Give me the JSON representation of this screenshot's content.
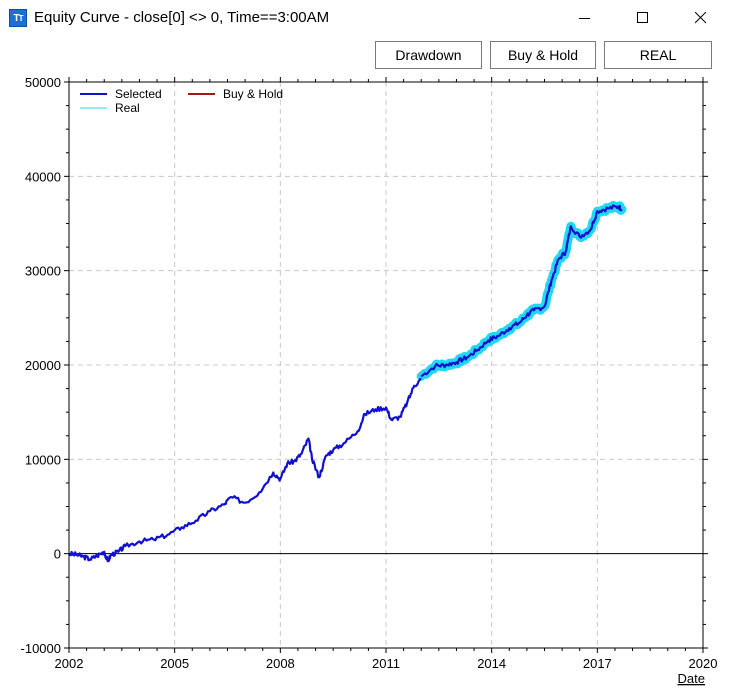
{
  "window": {
    "title": "Equity Curve - close[0] <> 0, Time==3:00AM",
    "icon": "tt-app-icon"
  },
  "toolbar": {
    "drawdown_label": "Drawdown",
    "buyhold_label": "Buy & Hold",
    "real_label": "REAL"
  },
  "chart_data": {
    "type": "line",
    "title": "",
    "xlabel": "Date",
    "ylabel": "",
    "xlim": [
      2002,
      2020
    ],
    "ylim": [
      -10000,
      50000
    ],
    "xticks": [
      2002,
      2005,
      2008,
      2011,
      2014,
      2017,
      2020
    ],
    "yticks": [
      -10000,
      0,
      10000,
      20000,
      30000,
      40000,
      50000
    ],
    "grid": true,
    "legend_position": "top-left",
    "series": [
      {
        "name": "Selected",
        "color": "#1010d0",
        "points": [
          [
            2002.0,
            0
          ],
          [
            2002.2,
            -100
          ],
          [
            2002.4,
            -300
          ],
          [
            2002.6,
            -600
          ],
          [
            2002.8,
            -200
          ],
          [
            2003.0,
            200
          ],
          [
            2003.1,
            -800
          ],
          [
            2003.2,
            -100
          ],
          [
            2003.4,
            200
          ],
          [
            2003.6,
            800
          ],
          [
            2004.0,
            1300
          ],
          [
            2004.4,
            1500
          ],
          [
            2004.8,
            2000
          ],
          [
            2005.2,
            2800
          ],
          [
            2005.6,
            3500
          ],
          [
            2006.0,
            4500
          ],
          [
            2006.4,
            5200
          ],
          [
            2006.6,
            6000
          ],
          [
            2007.0,
            5400
          ],
          [
            2007.4,
            6500
          ],
          [
            2007.8,
            8600
          ],
          [
            2008.0,
            7900
          ],
          [
            2008.2,
            9600
          ],
          [
            2008.4,
            9800
          ],
          [
            2008.6,
            10600
          ],
          [
            2008.8,
            12200
          ],
          [
            2008.9,
            10000
          ],
          [
            2009.1,
            8100
          ],
          [
            2009.3,
            10400
          ],
          [
            2009.5,
            11000
          ],
          [
            2009.8,
            11700
          ],
          [
            2010.2,
            13000
          ],
          [
            2010.4,
            14800
          ],
          [
            2010.7,
            15300
          ],
          [
            2011.0,
            15500
          ],
          [
            2011.15,
            14200
          ],
          [
            2011.4,
            14500
          ],
          [
            2011.6,
            16000
          ],
          [
            2011.8,
            17800
          ],
          [
            2012.0,
            18500
          ]
        ]
      },
      {
        "name": "Buy & Hold",
        "color": "#a01818",
        "points": []
      },
      {
        "name": "Real",
        "color": "#22d8f0",
        "points": [
          [
            2012.0,
            18800
          ],
          [
            2012.4,
            19900
          ],
          [
            2012.7,
            20000
          ],
          [
            2013.0,
            20300
          ],
          [
            2013.3,
            20800
          ],
          [
            2013.6,
            21600
          ],
          [
            2013.9,
            22600
          ],
          [
            2014.2,
            23100
          ],
          [
            2014.5,
            23900
          ],
          [
            2014.8,
            24500
          ],
          [
            2015.0,
            25300
          ],
          [
            2015.2,
            25800
          ],
          [
            2015.5,
            26200
          ],
          [
            2015.7,
            29000
          ],
          [
            2015.9,
            31200
          ],
          [
            2016.1,
            32000
          ],
          [
            2016.25,
            34700
          ],
          [
            2016.5,
            33600
          ],
          [
            2016.8,
            34300
          ],
          [
            2017.0,
            36300
          ],
          [
            2017.3,
            36600
          ],
          [
            2017.6,
            36800
          ],
          [
            2017.7,
            36500
          ]
        ]
      }
    ]
  }
}
